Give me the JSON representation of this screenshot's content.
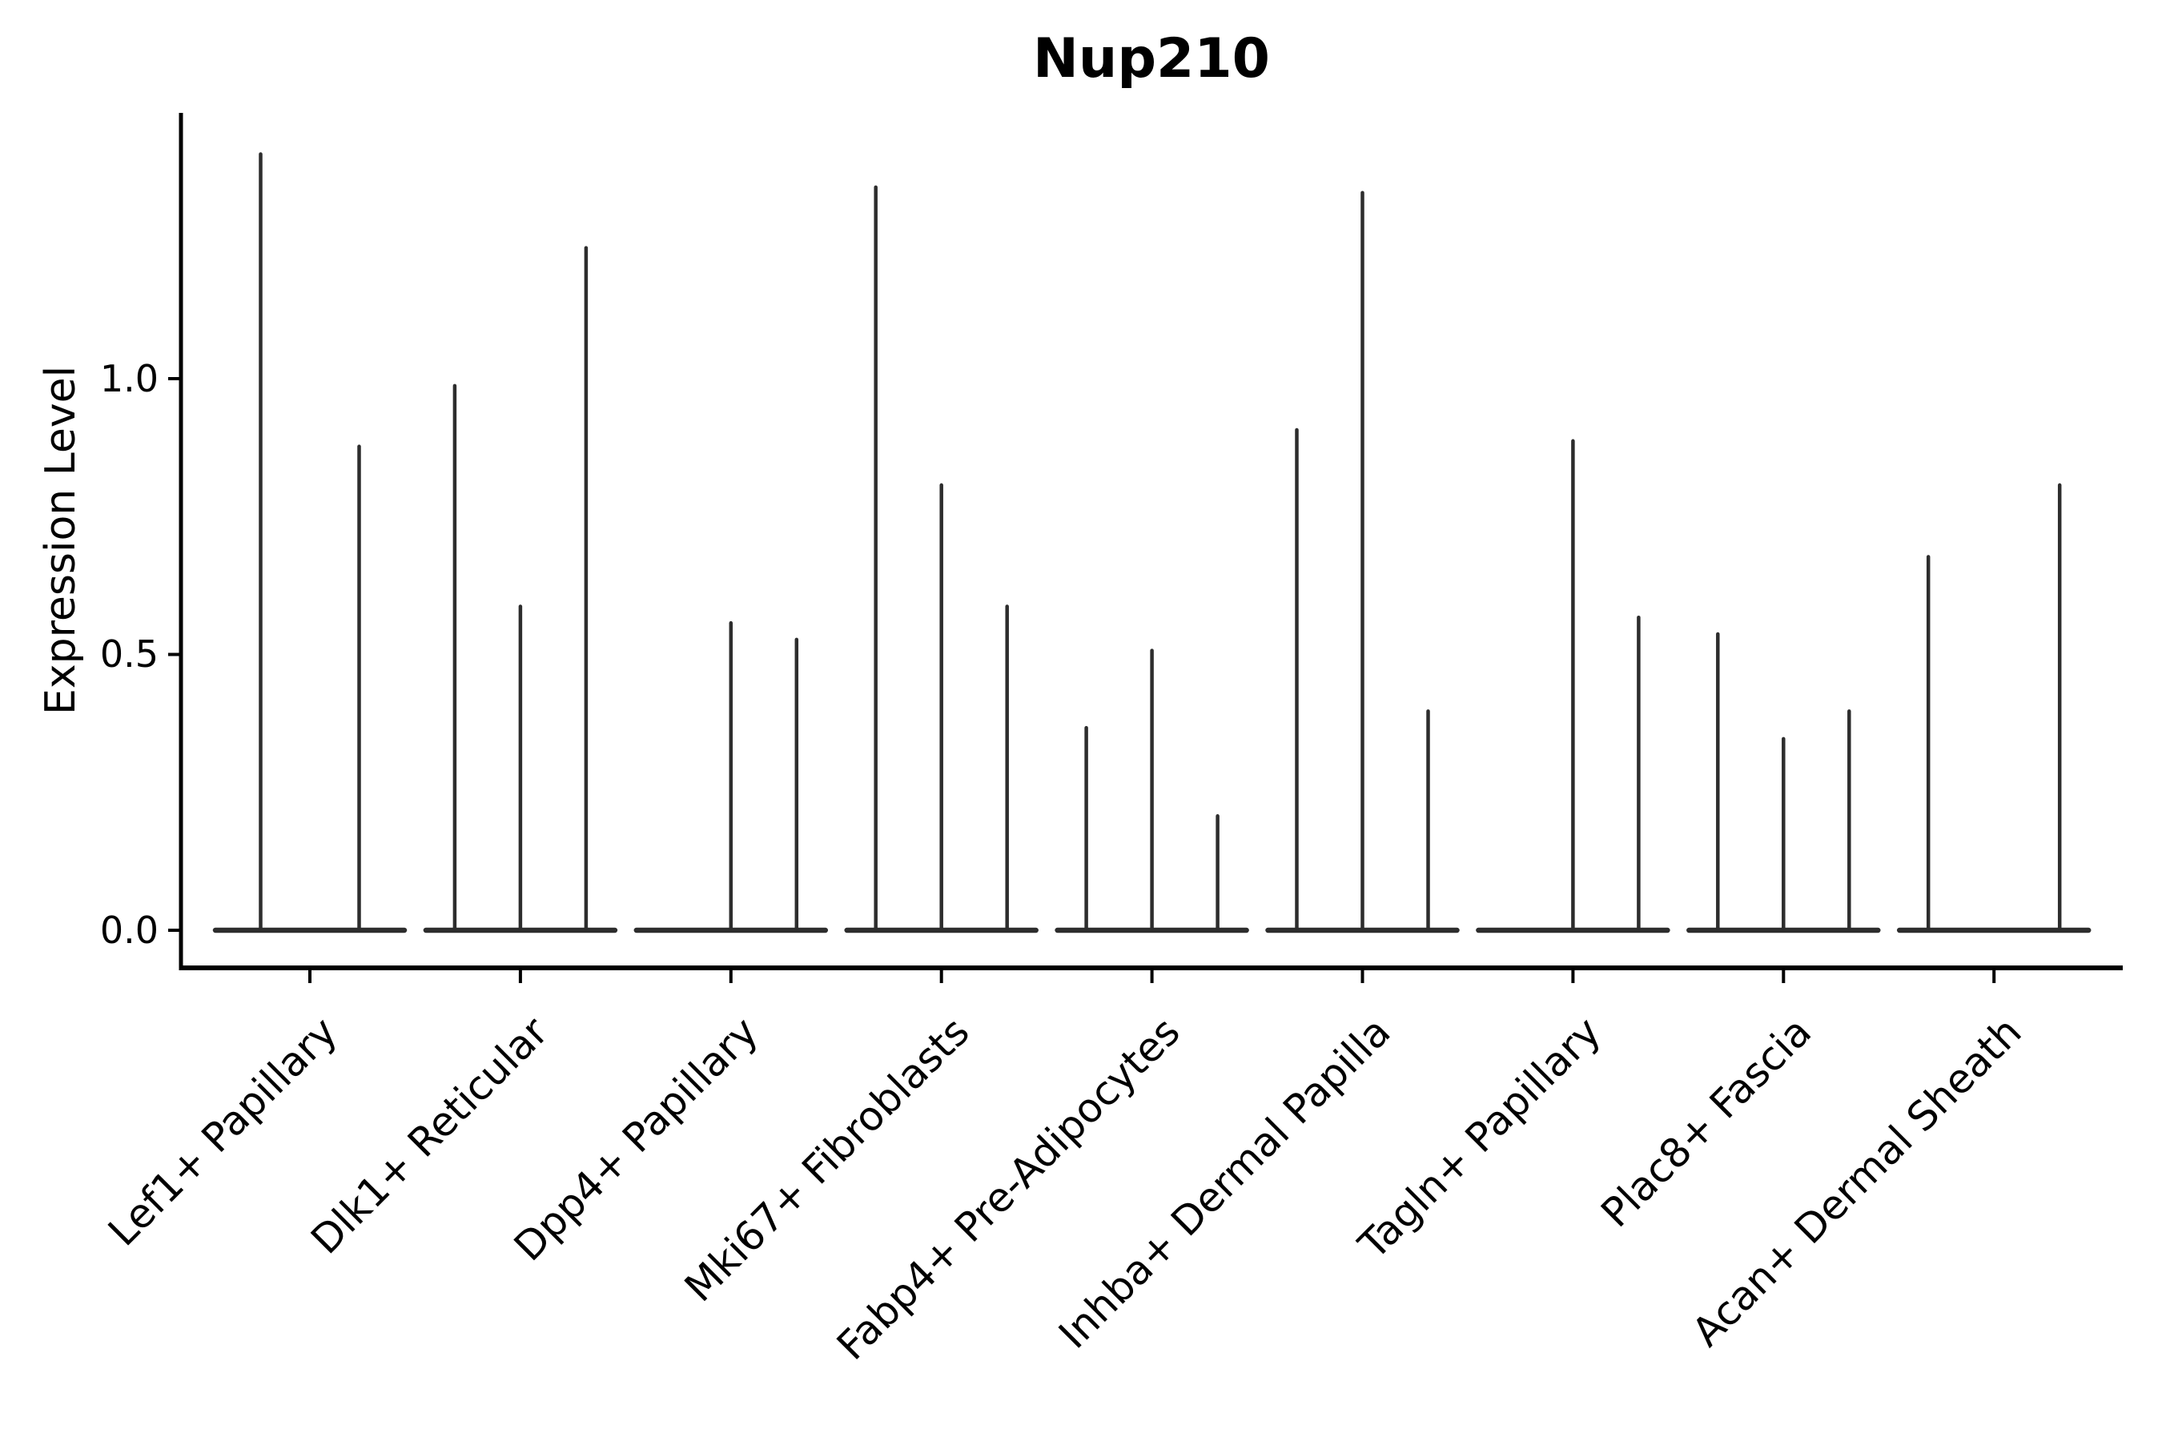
{
  "title": "Nup210",
  "axes": {
    "ylabel": "Expression Level",
    "ytick_labels": [
      "0.0",
      "0.5",
      "1.0"
    ]
  },
  "colors": {
    "background": "#ffffff",
    "violin": "#2d2d2d",
    "axis": "#000000",
    "text": "#000000"
  },
  "chart_data": {
    "type": "violin",
    "title": "Nup210",
    "xlabel": "",
    "ylabel": "Expression Level",
    "ylim": [
      -0.07,
      1.48
    ],
    "ytick_values": [
      0.0,
      0.5,
      1.0
    ],
    "ytick_labels": [
      "0.0",
      "0.5",
      "1.0"
    ],
    "grid": false,
    "legend": "none",
    "description": "Stacked thin violins of Nup210 expression; each category holds 2-3 violins whose mass sits at 0 with a thin tail; values below are the max expression (spike tip) of each violin, 0 = flat violin with no spike",
    "categories": [
      "Lef1+ Papillary",
      "Dlk1+ Reticular",
      "Dpp4+ Papillary",
      "Mki67+ Fibroblasts",
      "Fabp4+ Pre-Adipocytes",
      "Inhba+ Dermal Papilla",
      "Tagln+ Papillary",
      "Plac8+ Fascia",
      "Acan+ Dermal Sheath"
    ],
    "violins": [
      {
        "category": "Lef1+ Papillary",
        "max_values": [
          1.41,
          0.88
        ]
      },
      {
        "category": "Dlk1+ Reticular",
        "max_values": [
          0.99,
          0.59,
          1.24
        ]
      },
      {
        "category": "Dpp4+ Papillary",
        "max_values": [
          0.0,
          0.56,
          0.53
        ]
      },
      {
        "category": "Mki67+ Fibroblasts",
        "max_values": [
          1.35,
          0.81,
          0.59
        ]
      },
      {
        "category": "Fabp4+ Pre-Adipocytes",
        "max_values": [
          0.37,
          0.51,
          0.21
        ]
      },
      {
        "category": "Inhba+ Dermal Papilla",
        "max_values": [
          0.91,
          1.34,
          0.4
        ]
      },
      {
        "category": "Tagln+ Papillary",
        "max_values": [
          0.0,
          0.89,
          0.57
        ]
      },
      {
        "category": "Plac8+ Fascia",
        "max_values": [
          0.54,
          0.35,
          0.4
        ]
      },
      {
        "category": "Acan+ Dermal Sheath",
        "max_values": [
          0.68,
          0.0,
          0.81
        ]
      }
    ]
  }
}
